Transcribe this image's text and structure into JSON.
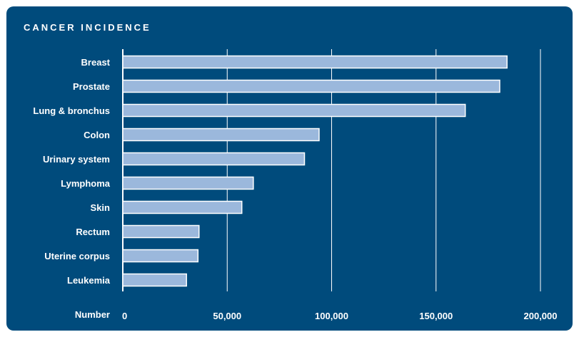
{
  "chart_data": {
    "type": "bar",
    "orientation": "horizontal",
    "title": "CANCER INCIDENCE",
    "xlabel": "Number",
    "ylabel": "",
    "categories": [
      "Breast",
      "Prostate",
      "Lung & bronchus",
      "Colon",
      "Urinary system",
      "Lymphoma",
      "Skin",
      "Rectum",
      "Uterine corpus",
      "Leukemia"
    ],
    "values": [
      184000,
      180500,
      164000,
      94000,
      87000,
      62500,
      57000,
      36500,
      36000,
      30500
    ],
    "xlim": [
      0,
      200000
    ],
    "xticks": [
      0,
      50000,
      100000,
      150000,
      200000
    ],
    "xtick_labels": [
      "0",
      "50,000",
      "100,000",
      "150,000",
      "200,000"
    ],
    "grid": true,
    "legend": "none"
  },
  "colors": {
    "background": "#004b7c",
    "bar_fill": "#9bb8dc",
    "bar_stroke": "#ffffff",
    "grid": "#ffffff",
    "text": "#ffffff"
  }
}
